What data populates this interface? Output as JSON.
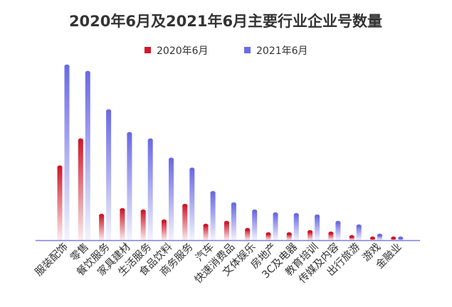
{
  "chart_data": {
    "type": "bar",
    "title": "2020年6月及2021年6月主要行业企业号数量",
    "xlabel": "",
    "ylabel": "",
    "grid": false,
    "legend_placement": "top",
    "categories": [
      "服装配饰",
      "零售",
      "餐饮服务",
      "家具建材",
      "生活服务",
      "食品饮料",
      "商务服务",
      "汽车",
      "快速消费品",
      "文体娱乐",
      "房地产",
      "3C及电器",
      "教育培训",
      "传媒及内容",
      "出行旅游",
      "游戏",
      "金融业"
    ],
    "series": [
      {
        "name": "2020年6月",
        "color": "#d0182a",
        "values": [
          103,
          141,
          35,
          43,
          41,
          27,
          49,
          21,
          25,
          15,
          9,
          9,
          12,
          10,
          5,
          3,
          3
        ]
      },
      {
        "name": "2021年6月",
        "color": "#6a6ae6",
        "values": [
          245,
          236,
          182,
          150,
          141,
          114,
          100,
          67,
          51,
          41,
          37,
          36,
          34,
          25,
          20,
          7,
          3
        ]
      }
    ],
    "ylim": [
      0,
      250
    ],
    "axis_color": "#7b7fd8"
  }
}
